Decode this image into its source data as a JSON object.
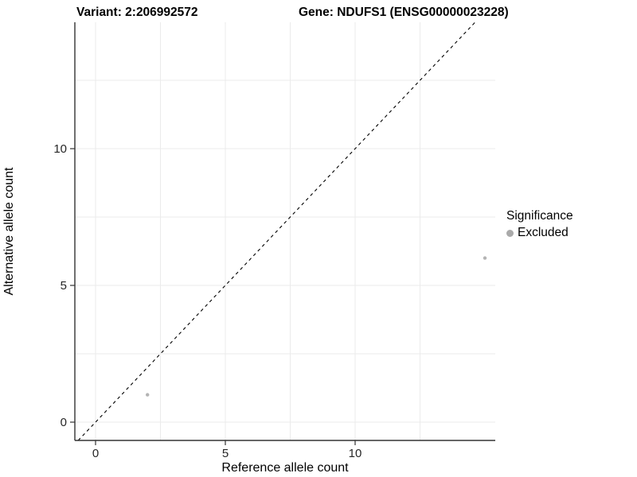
{
  "titles": {
    "variant": "Variant: 2:206992572",
    "gene": "Gene: NDUFS1 (ENSG00000023228)"
  },
  "axes": {
    "x": {
      "label": "Reference allele count",
      "ticks": [
        0,
        5,
        10
      ],
      "minor_ticks": [
        2.5,
        7.5,
        12.5
      ]
    },
    "y": {
      "label": "Alternative allele count",
      "ticks": [
        0,
        5,
        10
      ],
      "minor_ticks": [
        2.5,
        7.5,
        12.5
      ]
    }
  },
  "legend": {
    "title": "Significance",
    "items": [
      {
        "label": "Excluded",
        "color": "#aaaaaa"
      }
    ]
  },
  "chart_data": {
    "type": "scatter",
    "title": "Variant: 2:206992572  |  Gene: NDUFS1 (ENSG00000023228)",
    "xlabel": "Reference allele count",
    "ylabel": "Alternative allele count",
    "series": [
      {
        "name": "Excluded",
        "color": "#b4b4b4",
        "points": [
          {
            "x": 2,
            "y": 1
          },
          {
            "x": 15,
            "y": 6
          }
        ]
      }
    ],
    "identity_line": {
      "slope": 1,
      "intercept": 0,
      "style": "dashed",
      "color": "#000000"
    },
    "xlim": [
      -0.8,
      15.4
    ],
    "ylim": [
      -0.67,
      14.62
    ],
    "x_ticks": [
      0,
      5,
      10
    ],
    "y_ticks": [
      0,
      5,
      10
    ],
    "grid": "major and minor gridlines every 2.5 units, very light gray",
    "legend_position": "right"
  },
  "colors": {
    "point": "#b4b4b4",
    "legend_key": "#aaaaaa",
    "grid": "#ebebeb",
    "axis": "#333333",
    "tick_label": "#262626"
  }
}
